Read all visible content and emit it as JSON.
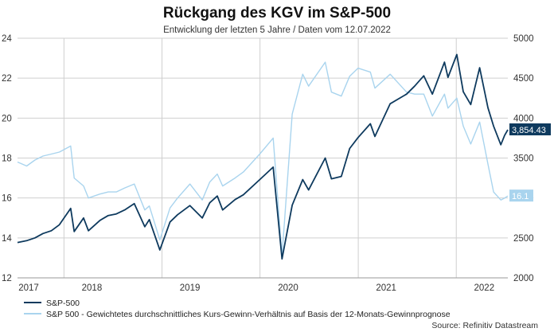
{
  "chart_data": {
    "type": "line",
    "title": "Rückgang des KGV im S&P-500",
    "subtitle": "Entwicklung der letzten 5 Jahre / Daten vom 12.07.2022",
    "source": "Source: Refinitiv Datastream",
    "x_ticks": [
      "2017",
      "2018",
      "2019",
      "2020",
      "2021",
      "2022"
    ],
    "xlim": [
      "2017-07-12",
      "2022-07-12"
    ],
    "left_axis": {
      "ylim": [
        12,
        24
      ],
      "ticks": [
        "12",
        "14",
        "16",
        "18",
        "20",
        "22",
        "24"
      ]
    },
    "right_axis": {
      "ylim": [
        2000,
        5000
      ],
      "ticks": [
        "2000",
        "2500",
        "3000",
        "3500",
        "4000",
        "4500",
        "5000"
      ]
    },
    "grid": true,
    "legend_position": "bottom-left",
    "colors": {
      "sp500": "#0e3a5e",
      "pe": "#a9d4ee",
      "grid": "#cfcfcf"
    },
    "series": [
      {
        "name": "S&P-500",
        "axis": "right",
        "color": "#0e3a5e",
        "last_label": "3,854.43",
        "points": [
          [
            "2017-07-12",
            2443
          ],
          [
            "2017-08-15",
            2465
          ],
          [
            "2017-09-15",
            2500
          ],
          [
            "2017-10-15",
            2555
          ],
          [
            "2017-11-15",
            2590
          ],
          [
            "2017-12-15",
            2665
          ],
          [
            "2018-01-26",
            2870
          ],
          [
            "2018-02-08",
            2580
          ],
          [
            "2018-03-15",
            2750
          ],
          [
            "2018-04-02",
            2590
          ],
          [
            "2018-05-15",
            2720
          ],
          [
            "2018-06-15",
            2780
          ],
          [
            "2018-07-15",
            2800
          ],
          [
            "2018-08-15",
            2850
          ],
          [
            "2018-09-20",
            2930
          ],
          [
            "2018-10-29",
            2640
          ],
          [
            "2018-11-15",
            2730
          ],
          [
            "2018-12-24",
            2350
          ],
          [
            "2019-01-31",
            2700
          ],
          [
            "2019-02-28",
            2790
          ],
          [
            "2019-04-15",
            2905
          ],
          [
            "2019-05-31",
            2750
          ],
          [
            "2019-06-28",
            2940
          ],
          [
            "2019-07-26",
            3025
          ],
          [
            "2019-08-15",
            2850
          ],
          [
            "2019-09-30",
            2980
          ],
          [
            "2019-10-31",
            3040
          ],
          [
            "2019-12-31",
            3230
          ],
          [
            "2020-02-19",
            3386
          ],
          [
            "2020-03-23",
            2237
          ],
          [
            "2020-04-30",
            2910
          ],
          [
            "2020-06-08",
            3230
          ],
          [
            "2020-06-30",
            3100
          ],
          [
            "2020-08-31",
            3500
          ],
          [
            "2020-09-23",
            3240
          ],
          [
            "2020-10-30",
            3270
          ],
          [
            "2020-11-30",
            3620
          ],
          [
            "2020-12-31",
            3756
          ],
          [
            "2021-02-15",
            3930
          ],
          [
            "2021-03-04",
            3770
          ],
          [
            "2021-04-30",
            4180
          ],
          [
            "2021-06-30",
            4300
          ],
          [
            "2021-07-30",
            4400
          ],
          [
            "2021-09-02",
            4530
          ],
          [
            "2021-10-04",
            4300
          ],
          [
            "2021-11-18",
            4700
          ],
          [
            "2021-12-01",
            4510
          ],
          [
            "2022-01-03",
            4796
          ],
          [
            "2022-01-27",
            4330
          ],
          [
            "2022-02-24",
            4170
          ],
          [
            "2022-03-29",
            4630
          ],
          [
            "2022-04-29",
            4130
          ],
          [
            "2022-05-20",
            3900
          ],
          [
            "2022-06-16",
            3666
          ],
          [
            "2022-06-30",
            3785
          ],
          [
            "2022-07-12",
            3854
          ]
        ]
      },
      {
        "name": "S&P 500 - Gewichtetes durchschnittliches Kurs-Gewinn-Verhältnis auf Basis der 12-Monats-Gewinnprognose",
        "axis": "left",
        "color": "#a9d4ee",
        "last_label": "16.1",
        "points": [
          [
            "2017-07-12",
            17.8
          ],
          [
            "2017-08-15",
            17.6
          ],
          [
            "2017-09-15",
            17.9
          ],
          [
            "2017-10-15",
            18.1
          ],
          [
            "2017-11-15",
            18.2
          ],
          [
            "2017-12-15",
            18.3
          ],
          [
            "2018-01-26",
            18.6
          ],
          [
            "2018-02-08",
            17.0
          ],
          [
            "2018-03-15",
            16.6
          ],
          [
            "2018-04-02",
            16.0
          ],
          [
            "2018-05-15",
            16.2
          ],
          [
            "2018-06-15",
            16.3
          ],
          [
            "2018-07-15",
            16.3
          ],
          [
            "2018-08-15",
            16.5
          ],
          [
            "2018-09-20",
            16.7
          ],
          [
            "2018-10-29",
            15.4
          ],
          [
            "2018-11-15",
            15.6
          ],
          [
            "2018-12-24",
            13.9
          ],
          [
            "2019-01-31",
            15.5
          ],
          [
            "2019-02-28",
            16.0
          ],
          [
            "2019-04-15",
            16.7
          ],
          [
            "2019-05-31",
            15.9
          ],
          [
            "2019-06-28",
            16.8
          ],
          [
            "2019-07-26",
            17.2
          ],
          [
            "2019-08-15",
            16.6
          ],
          [
            "2019-09-30",
            17.0
          ],
          [
            "2019-10-31",
            17.3
          ],
          [
            "2019-12-31",
            18.2
          ],
          [
            "2020-02-19",
            19.0
          ],
          [
            "2020-03-23",
            13.1
          ],
          [
            "2020-04-30",
            20.2
          ],
          [
            "2020-06-08",
            22.2
          ],
          [
            "2020-06-30",
            21.6
          ],
          [
            "2020-08-31",
            22.8
          ],
          [
            "2020-09-23",
            21.3
          ],
          [
            "2020-10-30",
            21.1
          ],
          [
            "2020-11-30",
            22.1
          ],
          [
            "2020-12-31",
            22.5
          ],
          [
            "2021-02-15",
            22.3
          ],
          [
            "2021-03-04",
            21.5
          ],
          [
            "2021-04-30",
            22.2
          ],
          [
            "2021-06-30",
            21.3
          ],
          [
            "2021-07-30",
            21.2
          ],
          [
            "2021-09-02",
            21.2
          ],
          [
            "2021-10-04",
            20.1
          ],
          [
            "2021-11-18",
            21.2
          ],
          [
            "2021-12-01",
            20.5
          ],
          [
            "2022-01-03",
            21.0
          ],
          [
            "2022-01-27",
            19.6
          ],
          [
            "2022-02-24",
            18.7
          ],
          [
            "2022-03-29",
            19.8
          ],
          [
            "2022-04-29",
            17.7
          ],
          [
            "2022-05-20",
            16.3
          ],
          [
            "2022-06-16",
            15.9
          ],
          [
            "2022-06-30",
            16.0
          ],
          [
            "2022-07-12",
            16.1
          ]
        ]
      }
    ]
  }
}
